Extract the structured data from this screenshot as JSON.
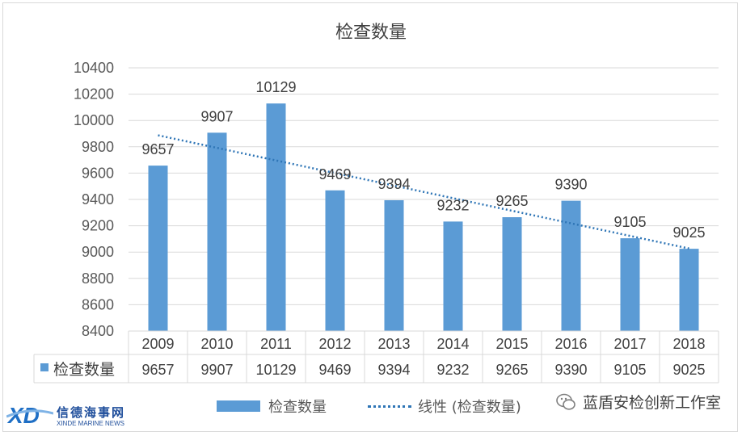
{
  "chart_data": {
    "type": "bar",
    "title": "检查数量",
    "categories": [
      "2009",
      "2010",
      "2011",
      "2012",
      "2013",
      "2014",
      "2015",
      "2016",
      "2017",
      "2018"
    ],
    "series": [
      {
        "name": "检查数量",
        "values": [
          9657,
          9907,
          10129,
          9469,
          9394,
          9232,
          9265,
          9390,
          9105,
          9025
        ],
        "color": "#5b9bd5"
      }
    ],
    "trendline": {
      "name": "线性 (检查数量)",
      "type": "linear",
      "color": "#2e75b6",
      "style": "dotted"
    },
    "ylim": [
      8400,
      10400
    ],
    "yticks": [
      8400,
      8600,
      8800,
      9000,
      9200,
      9400,
      9600,
      9800,
      10000,
      10200,
      10400
    ],
    "grid": true,
    "data_labels": true,
    "data_table": {
      "row_label": "检查数量"
    },
    "legend_position": "bottom"
  },
  "legend": {
    "bar_label": "检查数量",
    "line_label": "线性 (检查数量)"
  },
  "watermarks": {
    "left_logo_text": "信德海事网",
    "left_logo_sub": "XINDE MARINE NEWS",
    "right_text": "蓝盾安检创新工作室",
    "right_icon": "wechat-icon"
  }
}
